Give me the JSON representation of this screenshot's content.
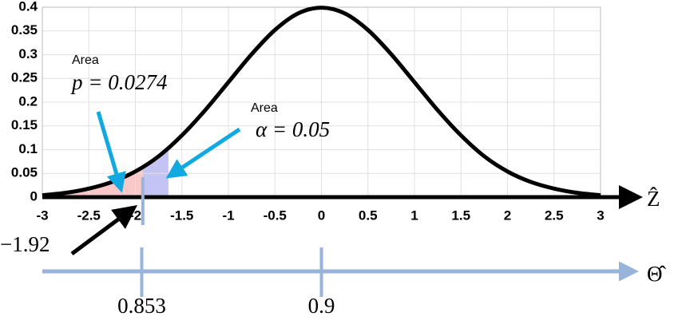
{
  "chart_data": {
    "type": "line",
    "x": [
      -3,
      -2.75,
      -2.5,
      -2.25,
      -2,
      -1.75,
      -1.5,
      -1.25,
      -1,
      -0.75,
      -0.5,
      -0.25,
      0,
      0.25,
      0.5,
      0.75,
      1,
      1.25,
      1.5,
      1.75,
      2,
      2.25,
      2.5,
      2.75,
      3
    ],
    "values": [
      0.004,
      0.009,
      0.018,
      0.032,
      0.054,
      0.086,
      0.13,
      0.183,
      0.242,
      0.301,
      0.352,
      0.387,
      0.399,
      0.387,
      0.352,
      0.301,
      0.242,
      0.183,
      0.13,
      0.086,
      0.054,
      0.032,
      0.018,
      0.009,
      0.004
    ],
    "color": "#000000",
    "xlim": [
      -3,
      3
    ],
    "xticks": [
      -3,
      -2.5,
      -2,
      -1.5,
      -1,
      -0.5,
      0,
      0.5,
      1,
      1.5,
      2,
      2.5,
      3
    ],
    "ylim": [
      0,
      0.4
    ],
    "yticks": [
      0,
      0.05,
      0.1,
      0.15,
      0.2,
      0.25,
      0.3,
      0.35,
      0.4
    ],
    "grid": true,
    "xlabel": "Ẑ",
    "shaded_regions": [
      {
        "from": -3,
        "to": -1.92,
        "color": "#f8c8c8"
      },
      {
        "from": -1.92,
        "to": -1.645,
        "color": "#c4c4f4"
      }
    ],
    "z_marker": {
      "value": -1.92,
      "label": "−1.92"
    },
    "annotations": [
      {
        "title": "Area",
        "text": "p = 0.0274"
      },
      {
        "title": "Area",
        "text": "α = 0.05"
      }
    ],
    "x2label": "Θ̂",
    "x2lim": [
      0.827,
      0.973
    ],
    "x2ticks": [
      0.853,
      0.9
    ]
  }
}
